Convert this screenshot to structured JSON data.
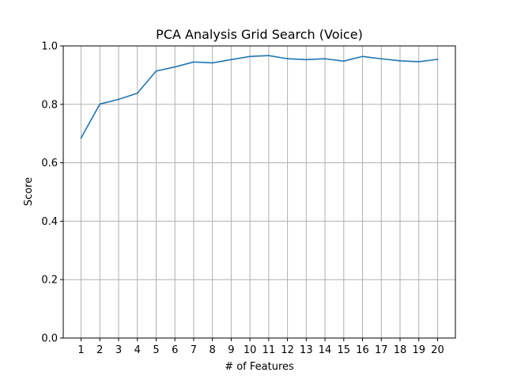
{
  "chart_data": {
    "type": "line",
    "title": "PCA Analysis Grid Search (Voice)",
    "xlabel": "# of Features",
    "ylabel": "Score",
    "x": [
      1,
      2,
      3,
      4,
      5,
      6,
      7,
      8,
      9,
      10,
      11,
      12,
      13,
      14,
      15,
      16,
      17,
      18,
      19,
      20
    ],
    "xlim": [
      0.05,
      20.95
    ],
    "ylim": [
      0.0,
      1.0
    ],
    "yticks": [
      0.0,
      0.2,
      0.4,
      0.6,
      0.8,
      1.0
    ],
    "ytick_labels": [
      "0.0",
      "0.2",
      "0.4",
      "0.6",
      "0.8",
      "1.0"
    ],
    "xtick_labels": [
      "1",
      "2",
      "3",
      "4",
      "5",
      "6",
      "7",
      "8",
      "9",
      "10",
      "11",
      "12",
      "13",
      "14",
      "15",
      "16",
      "17",
      "18",
      "19",
      "20"
    ],
    "grid": true,
    "series": [
      {
        "color": "#1f77b4",
        "values": [
          0.685,
          0.801,
          0.817,
          0.838,
          0.914,
          0.928,
          0.945,
          0.942,
          0.953,
          0.964,
          0.967,
          0.956,
          0.953,
          0.956,
          0.948,
          0.964,
          0.956,
          0.949,
          0.946,
          0.954
        ]
      }
    ]
  }
}
